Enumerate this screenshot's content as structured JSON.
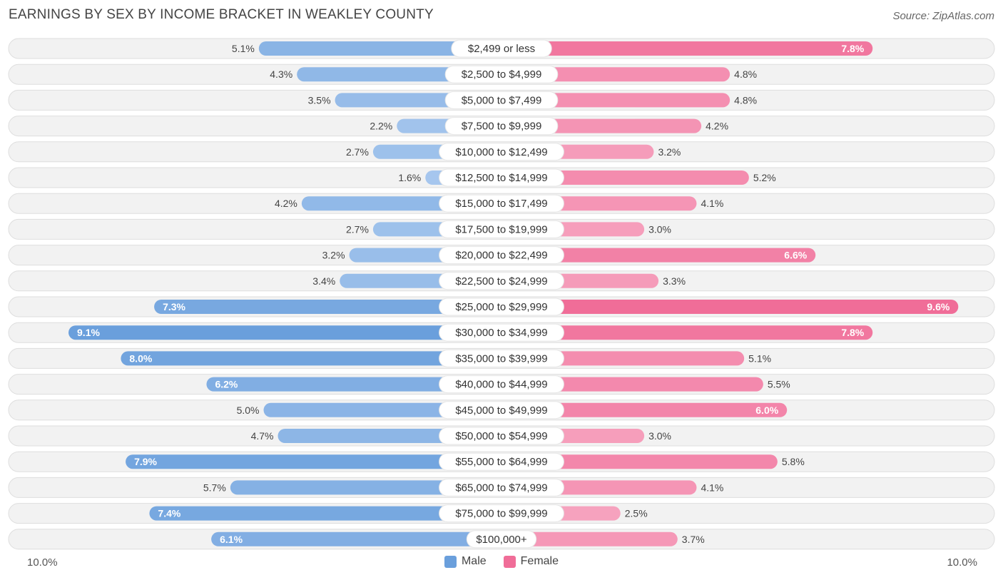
{
  "header": {
    "title": "EARNINGS BY SEX BY INCOME BRACKET IN WEAKLEY COUNTY",
    "source": "Source: ZipAtlas.com"
  },
  "axis": {
    "left_label": "10.0%",
    "right_label": "10.0%"
  },
  "legend": {
    "male_label": "Male",
    "female_label": "Female"
  },
  "colors": {
    "male_strong": "#6a9fdc",
    "male_light": "#a7c7ee",
    "female_strong": "#f06d98",
    "female_light": "#f7aac4",
    "track": "#f2f2f2",
    "track_border": "#dedede"
  },
  "chart_data": {
    "type": "bar",
    "orientation": "horizontal-diverging",
    "title": "EARNINGS BY SEX BY INCOME BRACKET IN WEAKLEY COUNTY",
    "xlim": [
      -10,
      10
    ],
    "unit": "%",
    "categories": [
      "$2,499 or less",
      "$2,500 to $4,999",
      "$5,000 to $7,499",
      "$7,500 to $9,999",
      "$10,000 to $12,499",
      "$12,500 to $14,999",
      "$15,000 to $17,499",
      "$17,500 to $19,999",
      "$20,000 to $22,499",
      "$22,500 to $24,999",
      "$25,000 to $29,999",
      "$30,000 to $34,999",
      "$35,000 to $39,999",
      "$40,000 to $44,999",
      "$45,000 to $49,999",
      "$50,000 to $54,999",
      "$55,000 to $64,999",
      "$65,000 to $74,999",
      "$75,000 to $99,999",
      "$100,000+"
    ],
    "series": [
      {
        "name": "Male",
        "values": [
          5.1,
          4.3,
          3.5,
          2.2,
          2.7,
          1.6,
          4.2,
          2.7,
          3.2,
          3.4,
          7.3,
          9.1,
          8.0,
          6.2,
          5.0,
          4.7,
          7.9,
          5.7,
          7.4,
          6.1
        ]
      },
      {
        "name": "Female",
        "values": [
          7.8,
          4.8,
          4.8,
          4.2,
          3.2,
          5.2,
          4.1,
          3.0,
          6.6,
          3.3,
          9.6,
          7.8,
          5.1,
          5.5,
          6.0,
          3.0,
          5.8,
          4.1,
          2.5,
          3.7
        ]
      }
    ],
    "value_labels": {
      "male": [
        "5.1%",
        "4.3%",
        "3.5%",
        "2.2%",
        "2.7%",
        "1.6%",
        "4.2%",
        "2.7%",
        "3.2%",
        "3.4%",
        "7.3%",
        "9.1%",
        "8.0%",
        "6.2%",
        "5.0%",
        "4.7%",
        "7.9%",
        "5.7%",
        "7.4%",
        "6.1%"
      ],
      "female": [
        "7.8%",
        "4.8%",
        "4.8%",
        "4.2%",
        "3.2%",
        "5.2%",
        "4.1%",
        "3.0%",
        "6.6%",
        "3.3%",
        "9.6%",
        "7.8%",
        "5.1%",
        "5.5%",
        "6.0%",
        "3.0%",
        "5.8%",
        "4.1%",
        "2.5%",
        "3.7%"
      ]
    }
  }
}
